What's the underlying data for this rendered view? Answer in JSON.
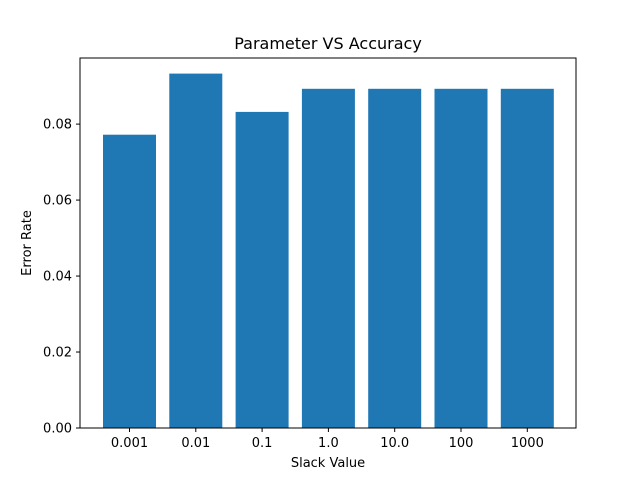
{
  "chart_data": {
    "type": "bar",
    "title": "Parameter VS Accuracy",
    "xlabel": "Slack Value",
    "ylabel": "Error Rate",
    "categories": [
      "0.001",
      "0.01",
      "0.1",
      "1.0",
      "10.0",
      "100",
      "1000"
    ],
    "values": [
      0.0772,
      0.0933,
      0.0832,
      0.0893,
      0.0893,
      0.0893,
      0.0893
    ],
    "ylim": [
      0,
      0.0974
    ],
    "yticks": [
      "0.00",
      "0.02",
      "0.04",
      "0.06",
      "0.08"
    ],
    "bar_color": "#1f77b4",
    "grid": false,
    "legend": false
  }
}
